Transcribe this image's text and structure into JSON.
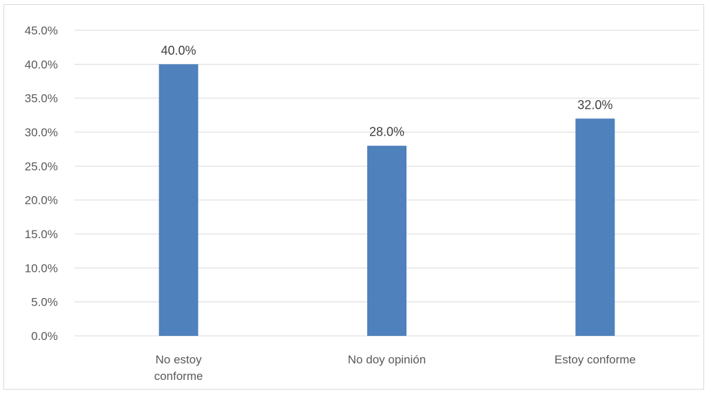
{
  "chart_data": {
    "type": "bar",
    "categories": [
      "No estoy conforme",
      "No doy opinión",
      "Estoy conforme"
    ],
    "category_lines": [
      [
        "No estoy",
        "conforme"
      ],
      [
        "No doy opinión"
      ],
      [
        "Estoy conforme"
      ]
    ],
    "values": [
      40.0,
      28.0,
      32.0
    ],
    "data_labels": [
      "40.0%",
      "28.0%",
      "32.0%"
    ],
    "ylim": [
      0,
      45
    ],
    "y_ticks": [
      0,
      5,
      10,
      15,
      20,
      25,
      30,
      35,
      40,
      45
    ],
    "y_tick_labels": [
      "0.0%",
      "5.0%",
      "10.0%",
      "15.0%",
      "20.0%",
      "25.0%",
      "30.0%",
      "35.0%",
      "40.0%",
      "45.0%"
    ],
    "title": "",
    "xlabel": "",
    "ylabel": "",
    "grid": true,
    "bar_color": "#4f81bd",
    "grid_color": "#d9d9d9",
    "text_color": "#595959"
  }
}
